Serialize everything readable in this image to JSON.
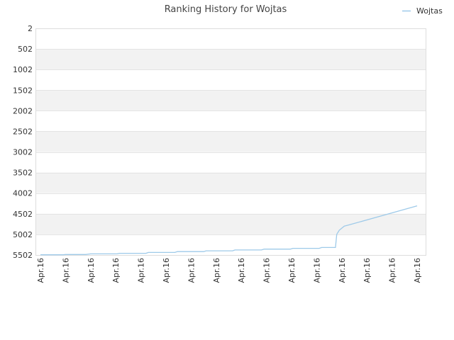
{
  "chart_data": {
    "type": "line",
    "title": "Ranking History for Wojtas",
    "xlabel": "",
    "ylabel": "",
    "ylim": [
      5502,
      2
    ],
    "y_inverted": true,
    "y_ticks": [
      2,
      502,
      1002,
      1502,
      2002,
      2502,
      3002,
      3502,
      4002,
      4502,
      5002,
      5502
    ],
    "x_tick_labels": [
      "Apr.16",
      "Apr.16",
      "Apr.16",
      "Apr.16",
      "Apr.16",
      "Apr.16",
      "Apr.16",
      "Apr.16",
      "Apr.16",
      "Apr.16",
      "Apr.16",
      "Apr.16",
      "Apr.16",
      "Apr.16",
      "Apr.16",
      "Apr.16"
    ],
    "grid": "horizontal alternating bands",
    "legend": {
      "position": "top-right",
      "entries": [
        "Wojtas"
      ]
    },
    "series": [
      {
        "name": "Wojtas",
        "color": "#9ecae9",
        "x": [
          0,
          0.9,
          1.0,
          1.8,
          2.0,
          3.05,
          3.15,
          4.2,
          4.3,
          5.35,
          5.45,
          6.5,
          6.6,
          7.65,
          7.75,
          8.8,
          8.9,
          9.95,
          10.05,
          11.1,
          11.2,
          11.75,
          11.8,
          11.9,
          12.1,
          12.3,
          15.0
        ],
        "y": [
          5496,
          5496,
          5490,
          5490,
          5475,
          5475,
          5460,
          5460,
          5440,
          5440,
          5420,
          5420,
          5400,
          5400,
          5380,
          5380,
          5360,
          5360,
          5340,
          5340,
          5320,
          5320,
          5000,
          4900,
          4800,
          4770,
          4310
        ]
      }
    ]
  },
  "colors": {
    "band": "#f2f2f2",
    "grid": "#e4e4e4",
    "axis": "#dddddd",
    "line": "#9ecae9"
  }
}
